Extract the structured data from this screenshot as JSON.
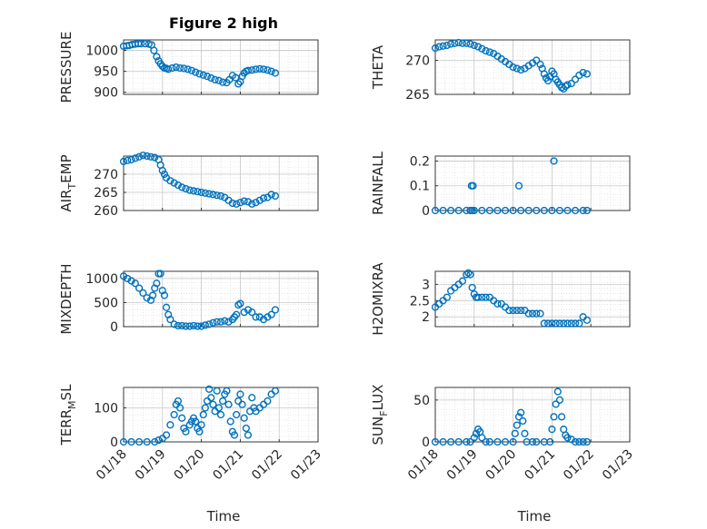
{
  "figure": {
    "title": "Figure 2 high",
    "xlabel_left": "Time",
    "xlabel_right": "Time",
    "x_ticks": [
      "01/18",
      "01/19",
      "01/20",
      "01/21",
      "01/22",
      "01/23"
    ],
    "xlim": [
      0,
      5
    ],
    "marker_color": "#0072BD"
  },
  "chart_data": [
    {
      "type": "scatter",
      "name": "pressure",
      "ylabel": "PRESSURE",
      "yticks": [
        900,
        950,
        1000
      ],
      "ylim": [
        895,
        1025
      ],
      "x": [
        0,
        0.08,
        0.15,
        0.22,
        0.3,
        0.38,
        0.45,
        0.55,
        0.65,
        0.72,
        0.78,
        0.85,
        0.9,
        0.95,
        1.0,
        1.05,
        1.1,
        1.15,
        1.25,
        1.35,
        1.45,
        1.55,
        1.65,
        1.75,
        1.85,
        1.95,
        2.05,
        2.15,
        2.25,
        2.35,
        2.45,
        2.55,
        2.65,
        2.72,
        2.8,
        2.88,
        2.95,
        3.0,
        3.05,
        3.1,
        3.15,
        3.2,
        3.3,
        3.4,
        3.5,
        3.6,
        3.7,
        3.8,
        3.9
      ],
      "y": [
        1010,
        1011,
        1012,
        1014,
        1015,
        1016,
        1016,
        1016,
        1015,
        1013,
        1000,
        985,
        975,
        968,
        962,
        958,
        957,
        955,
        958,
        960,
        958,
        957,
        955,
        952,
        948,
        944,
        941,
        938,
        934,
        930,
        928,
        924,
        923,
        930,
        940,
        935,
        920,
        925,
        938,
        946,
        950,
        952,
        953,
        955,
        956,
        955,
        953,
        950,
        946
      ]
    },
    {
      "type": "scatter",
      "name": "theta",
      "ylabel": "THETA",
      "yticks": [
        265,
        270
      ],
      "ylim": [
        265,
        273
      ],
      "x": [
        0,
        0.1,
        0.2,
        0.3,
        0.4,
        0.5,
        0.6,
        0.7,
        0.8,
        0.9,
        1.0,
        1.1,
        1.2,
        1.3,
        1.4,
        1.5,
        1.6,
        1.7,
        1.8,
        1.9,
        2.0,
        2.1,
        2.2,
        2.3,
        2.4,
        2.5,
        2.6,
        2.7,
        2.75,
        2.8,
        2.85,
        2.9,
        2.95,
        3.0,
        3.05,
        3.1,
        3.15,
        3.2,
        3.25,
        3.3,
        3.35,
        3.4,
        3.5,
        3.6,
        3.7,
        3.8,
        3.9
      ],
      "y": [
        271.8,
        272.0,
        272.1,
        272.2,
        272.4,
        272.5,
        272.6,
        272.5,
        272.5,
        272.4,
        272.2,
        272.0,
        271.7,
        271.4,
        271.2,
        271.0,
        270.6,
        270.2,
        269.8,
        269.4,
        269.0,
        268.8,
        268.6,
        268.8,
        269.2,
        269.6,
        270.0,
        269.4,
        268.8,
        268.0,
        267.4,
        267.0,
        267.6,
        268.4,
        268.0,
        267.2,
        266.8,
        266.4,
        266.0,
        265.8,
        266.2,
        266.4,
        266.6,
        267.2,
        267.8,
        268.2,
        268.0
      ]
    },
    {
      "type": "scatter",
      "name": "air_temp",
      "ylabel": "AIR_TEMP",
      "yticks": [
        260,
        265,
        270
      ],
      "ylim": [
        260,
        275
      ],
      "x": [
        0,
        0.1,
        0.2,
        0.3,
        0.4,
        0.5,
        0.6,
        0.7,
        0.8,
        0.9,
        0.95,
        1.0,
        1.05,
        1.1,
        1.2,
        1.3,
        1.4,
        1.5,
        1.6,
        1.7,
        1.8,
        1.9,
        2.0,
        2.1,
        2.2,
        2.3,
        2.4,
        2.5,
        2.6,
        2.7,
        2.8,
        2.9,
        3.0,
        3.1,
        3.2,
        3.3,
        3.4,
        3.5,
        3.6,
        3.7,
        3.8,
        3.9
      ],
      "y": [
        273.5,
        273.8,
        274.0,
        274.4,
        274.8,
        275.2,
        275.0,
        274.8,
        274.6,
        274.0,
        272.5,
        271.0,
        270.0,
        269.0,
        268.2,
        267.6,
        267.0,
        266.4,
        266.0,
        265.6,
        265.4,
        265.2,
        265.0,
        264.8,
        264.6,
        264.4,
        264.2,
        264.0,
        263.6,
        262.8,
        262.0,
        261.8,
        262.2,
        262.6,
        262.4,
        261.8,
        262.2,
        262.8,
        263.4,
        263.6,
        264.4,
        264.0
      ]
    },
    {
      "type": "scatter",
      "name": "rainfall",
      "ylabel": "RAINFALL",
      "yticks": [
        0,
        0.1,
        0.2
      ],
      "ylim": [
        0,
        0.22
      ],
      "x": [
        0,
        0.2,
        0.4,
        0.6,
        0.8,
        0.9,
        0.95,
        1.0,
        1.2,
        1.4,
        1.6,
        1.8,
        2.0,
        2.2,
        2.4,
        2.6,
        2.8,
        3.0,
        3.2,
        3.4,
        3.6,
        3.8,
        3.9,
        0.93,
        0.97,
        2.15,
        3.05
      ],
      "y": [
        0,
        0,
        0,
        0,
        0,
        0,
        0,
        0,
        0,
        0,
        0,
        0,
        0,
        0,
        0,
        0,
        0,
        0,
        0,
        0,
        0,
        0,
        0,
        0.1,
        0.1,
        0.1,
        0.2
      ]
    },
    {
      "type": "scatter",
      "name": "mixdepth",
      "ylabel": "MIXDEPTH",
      "yticks": [
        0,
        500,
        1000
      ],
      "ylim": [
        0,
        1150
      ],
      "x": [
        0,
        0.1,
        0.2,
        0.3,
        0.4,
        0.5,
        0.6,
        0.7,
        0.75,
        0.8,
        0.85,
        0.9,
        0.95,
        1.0,
        1.05,
        1.1,
        1.15,
        1.2,
        1.3,
        1.4,
        1.5,
        1.6,
        1.7,
        1.8,
        1.9,
        2.0,
        2.1,
        2.2,
        2.3,
        2.4,
        2.5,
        2.6,
        2.7,
        2.8,
        2.85,
        2.9,
        2.95,
        3.0,
        3.1,
        3.2,
        3.3,
        3.4,
        3.5,
        3.6,
        3.7,
        3.8,
        3.9
      ],
      "y": [
        1050,
        1000,
        950,
        900,
        800,
        700,
        600,
        550,
        650,
        800,
        900,
        1100,
        1100,
        750,
        650,
        400,
        250,
        150,
        50,
        20,
        20,
        10,
        10,
        20,
        10,
        10,
        30,
        50,
        80,
        100,
        100,
        120,
        100,
        150,
        200,
        250,
        450,
        480,
        300,
        350,
        300,
        200,
        200,
        150,
        200,
        250,
        350
      ]
    },
    {
      "type": "scatter",
      "name": "h2omixra",
      "ylabel": "H2OMIXRA",
      "yticks": [
        2,
        2.5,
        3
      ],
      "ylim": [
        1.7,
        3.4
      ],
      "x": [
        0,
        0.1,
        0.2,
        0.3,
        0.4,
        0.5,
        0.6,
        0.7,
        0.8,
        0.85,
        0.9,
        0.95,
        1.0,
        1.05,
        1.1,
        1.2,
        1.3,
        1.4,
        1.5,
        1.6,
        1.7,
        1.8,
        1.9,
        2.0,
        2.1,
        2.2,
        2.3,
        2.4,
        2.5,
        2.6,
        2.7,
        2.8,
        2.9,
        3.0,
        3.1,
        3.2,
        3.3,
        3.4,
        3.5,
        3.6,
        3.7,
        3.8,
        3.9
      ],
      "y": [
        2.3,
        2.4,
        2.5,
        2.6,
        2.8,
        2.9,
        3.0,
        3.1,
        3.3,
        3.35,
        3.3,
        2.9,
        2.7,
        2.6,
        2.6,
        2.6,
        2.6,
        2.6,
        2.5,
        2.4,
        2.4,
        2.3,
        2.2,
        2.2,
        2.2,
        2.2,
        2.2,
        2.1,
        2.1,
        2.1,
        2.1,
        1.8,
        1.8,
        1.8,
        1.8,
        1.8,
        1.8,
        1.8,
        1.8,
        1.8,
        1.8,
        2.0,
        1.9
      ]
    },
    {
      "type": "scatter",
      "name": "terr_msl",
      "ylabel": "TERR_MSL",
      "yticks": [
        0,
        100
      ],
      "ylim": [
        0,
        160
      ],
      "x": [
        0,
        0.2,
        0.4,
        0.6,
        0.8,
        0.9,
        1.0,
        1.1,
        1.2,
        1.3,
        1.35,
        1.4,
        1.45,
        1.5,
        1.55,
        1.6,
        1.7,
        1.75,
        1.8,
        1.85,
        1.9,
        1.95,
        2.0,
        2.05,
        2.1,
        2.15,
        2.2,
        2.25,
        2.3,
        2.35,
        2.4,
        2.45,
        2.5,
        2.55,
        2.6,
        2.65,
        2.7,
        2.75,
        2.8,
        2.85,
        2.9,
        2.95,
        3.0,
        3.05,
        3.1,
        3.15,
        3.2,
        3.25,
        3.3,
        3.35,
        3.4,
        3.5,
        3.6,
        3.7,
        3.8,
        3.9
      ],
      "y": [
        0,
        0,
        0,
        0,
        0,
        5,
        10,
        20,
        50,
        80,
        110,
        120,
        100,
        70,
        40,
        30,
        50,
        60,
        70,
        60,
        40,
        30,
        50,
        80,
        100,
        120,
        155,
        130,
        110,
        90,
        150,
        100,
        80,
        120,
        140,
        150,
        110,
        60,
        30,
        20,
        80,
        120,
        140,
        110,
        70,
        40,
        20,
        90,
        130,
        100,
        90,
        100,
        110,
        120,
        140,
        150
      ]
    },
    {
      "type": "scatter",
      "name": "sun_flux",
      "ylabel": "SUN_FLUX",
      "yticks": [
        0,
        50
      ],
      "ylim": [
        0,
        65
      ],
      "x": [
        0,
        0.2,
        0.4,
        0.6,
        0.8,
        0.9,
        1.0,
        1.05,
        1.1,
        1.15,
        1.2,
        1.3,
        1.4,
        1.6,
        1.8,
        2.0,
        2.05,
        2.1,
        2.15,
        2.2,
        2.25,
        2.3,
        2.35,
        2.5,
        2.6,
        2.8,
        2.95,
        3.0,
        3.05,
        3.1,
        3.15,
        3.2,
        3.25,
        3.3,
        3.35,
        3.4,
        3.5,
        3.6,
        3.7,
        3.8,
        3.9
      ],
      "y": [
        0,
        0,
        0,
        0,
        0,
        0,
        5,
        10,
        15,
        12,
        5,
        0,
        0,
        0,
        0,
        0,
        10,
        20,
        30,
        35,
        25,
        10,
        0,
        0,
        0,
        0,
        0,
        15,
        30,
        45,
        60,
        50,
        30,
        15,
        8,
        5,
        3,
        0,
        0,
        0,
        0
      ]
    }
  ]
}
